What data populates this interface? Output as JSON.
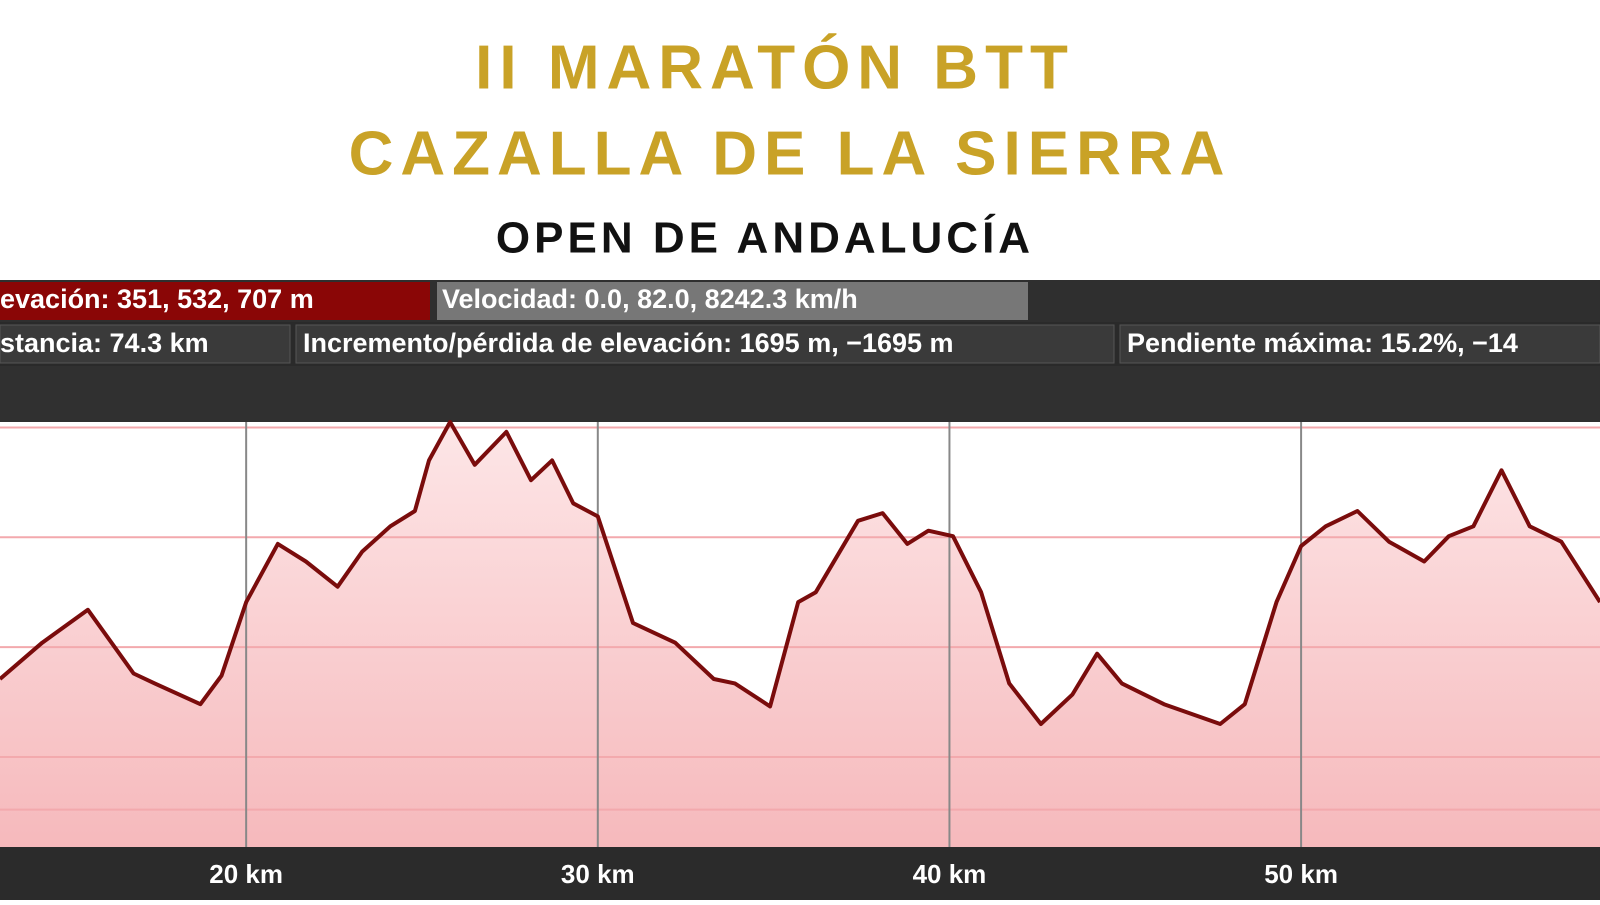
{
  "header": {
    "title_line1": "II MARATÓN BTT",
    "title_line2": "CAZALLA DE LA SIERRA",
    "subtitle": "OPEN DE ANDALUCÍA"
  },
  "stats": {
    "row1": [
      "evación: 351, 532, 707 m",
      "Velocidad: 0.0, 82.0, 8242.3 km/h"
    ],
    "row2": [
      "stancia: 74.3 km",
      "Incremento/pérdida de elevación: 1695 m, −1695 m",
      "Pendiente máxima: 15.2%, −14"
    ]
  },
  "chart_data": {
    "type": "area",
    "color": "#7a0c0c",
    "fill": "#f8c4c6",
    "x": [
      13.0,
      14.2,
      15.5,
      16.8,
      17.4,
      18.7,
      19.3,
      20.0,
      20.9,
      21.7,
      22.6,
      23.3,
      24.1,
      24.8,
      25.2,
      25.8,
      26.5,
      27.4,
      28.1,
      28.7,
      29.3,
      30.0,
      31.0,
      32.2,
      33.3,
      33.9,
      34.9,
      35.7,
      36.2,
      37.4,
      38.1,
      38.8,
      39.4,
      40.1,
      40.9,
      41.7,
      42.6,
      43.5,
      44.2,
      44.9,
      46.1,
      47.7,
      48.4,
      49.3,
      50.0,
      50.7,
      51.6,
      52.5,
      53.5,
      54.2,
      54.9,
      55.7,
      56.5,
      57.4,
      58.5
    ],
    "values": [
      471,
      504,
      534,
      476,
      467,
      448,
      474,
      541,
      594,
      578,
      555,
      587,
      610,
      624,
      670,
      705,
      666,
      696,
      652,
      670,
      631,
      619,
      522,
      504,
      471,
      467,
      446,
      541,
      550,
      615,
      622,
      594,
      606,
      601,
      550,
      467,
      430,
      457,
      494,
      467,
      448,
      430,
      448,
      541,
      592,
      610,
      624,
      596,
      578,
      601,
      610,
      661,
      610,
      596,
      541
    ],
    "xlim": [
      13.0,
      58.5
    ],
    "xticks": [
      {
        "value": 20,
        "label": "20 km"
      },
      {
        "value": 30,
        "label": "30 km"
      },
      {
        "value": 40,
        "label": "40 km"
      },
      {
        "value": 50,
        "label": "50 km"
      }
    ],
    "ylim": [
      318,
      705
    ],
    "ygrid": [
      352,
      400,
      500,
      600,
      700
    ]
  }
}
